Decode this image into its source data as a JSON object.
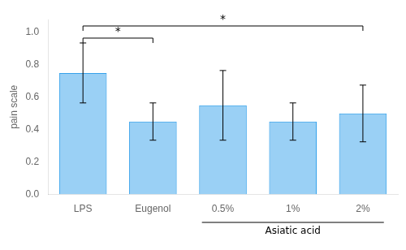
{
  "chart_data": {
    "type": "bar",
    "categories": [
      "LPS",
      "Eugenol",
      "0.5%",
      "1%",
      "2%"
    ],
    "values": [
      0.75,
      0.45,
      0.55,
      0.45,
      0.5
    ],
    "errors": [
      0.185,
      0.115,
      0.215,
      0.115,
      0.175
    ],
    "ylabel": "pain scale",
    "ylim": [
      0.0,
      1.08
    ],
    "yticks": [
      {
        "value": 0.0,
        "label": "0.0"
      },
      0.2,
      0.4,
      0.6,
      0.8,
      {
        "value": 1.0,
        "label": "1.0"
      }
    ],
    "grid": false,
    "annotations": [
      {
        "text": "*",
        "from": "LPS",
        "to": "Eugenol",
        "y": 0.965
      },
      {
        "text": "*",
        "from": "LPS",
        "to": "2%",
        "y": 1.04
      },
      {
        "text": "Asiatic acid",
        "from": "0.5%",
        "to": "2%"
      }
    ]
  }
}
